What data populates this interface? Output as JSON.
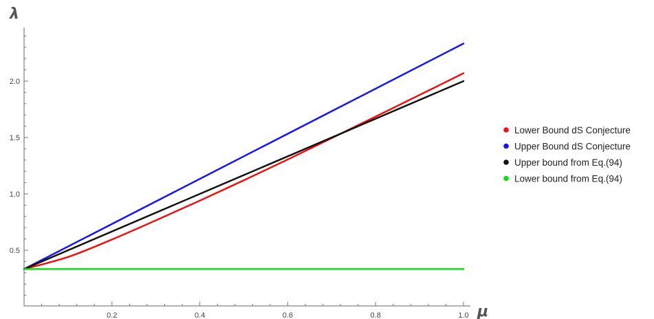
{
  "chart_data": {
    "type": "line",
    "xlabel": "μ",
    "ylabel": "λ",
    "xlim": [
      0.0,
      1.0
    ],
    "ylim": [
      0.0,
      2.4
    ],
    "x_ticks": [
      0.2,
      0.4,
      0.6,
      0.8,
      1.0
    ],
    "x_tick_labels": [
      "0.2",
      "0.4",
      "0.6",
      "0.8",
      "1.0"
    ],
    "y_ticks": [
      0.5,
      1.0,
      1.5,
      2.0
    ],
    "y_tick_labels": [
      "0.5",
      "1.0",
      "1.5",
      "2.0"
    ],
    "grid": false,
    "legend_position": "right",
    "series": [
      {
        "name": "Lower Bound dS Conjecture",
        "color": "#ee1111",
        "x": [
          0.0,
          0.1,
          0.2,
          0.3,
          0.4,
          0.5,
          0.6,
          0.7,
          0.8,
          0.9,
          1.0
        ],
        "y": [
          0.333,
          0.44,
          0.595,
          0.765,
          0.94,
          1.12,
          1.305,
          1.495,
          1.685,
          1.877,
          2.07
        ]
      },
      {
        "name": "Upper Bound dS Conjecture",
        "color": "#1515ee",
        "x": [
          0.0,
          1.0
        ],
        "y": [
          0.333,
          2.333
        ]
      },
      {
        "name": "Upper bound from Eq.(94)",
        "color": "#111111",
        "x": [
          0.0,
          1.0
        ],
        "y": [
          0.333,
          2.0
        ]
      },
      {
        "name": "Lower bound from Eq.(94)",
        "color": "#11dd11",
        "x": [
          0.0,
          1.0
        ],
        "y": [
          0.333,
          0.333
        ]
      }
    ]
  }
}
